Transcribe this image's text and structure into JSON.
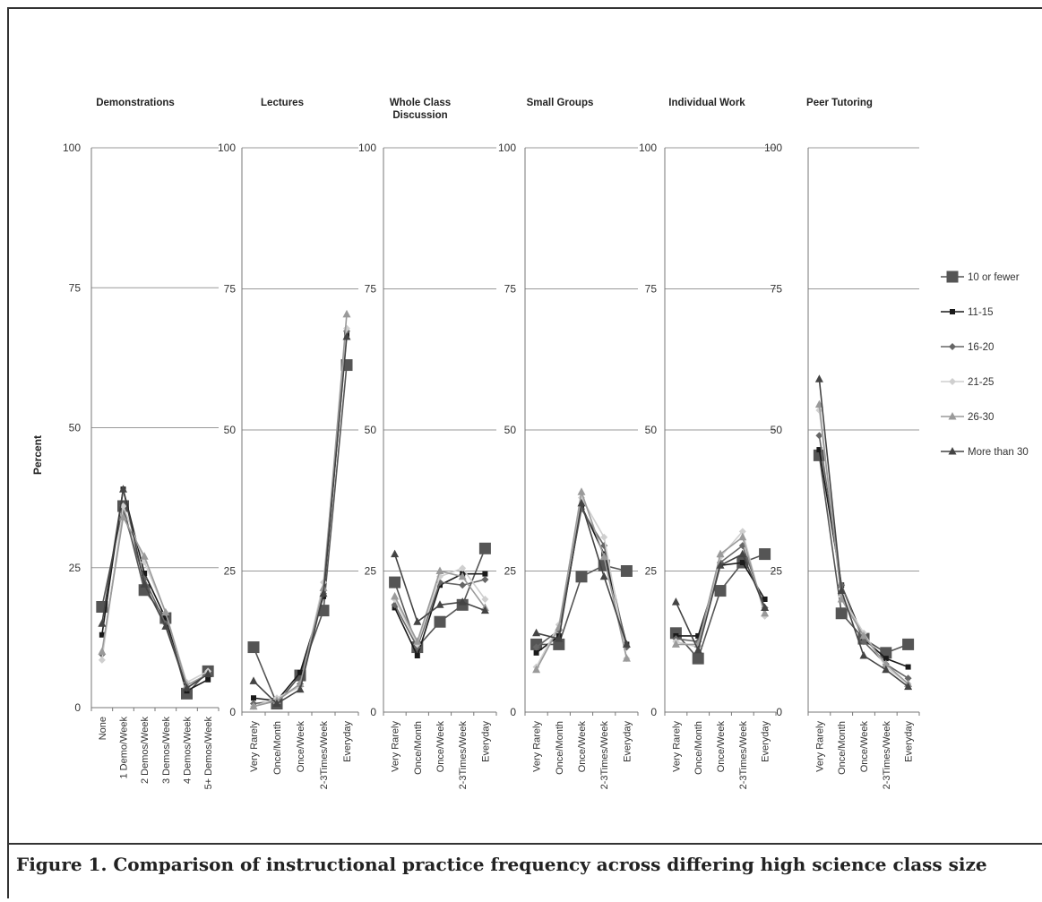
{
  "caption": "Figure 1. Comparison of instructional practice frequency across differing high science class size",
  "chart_data": {
    "type": "line",
    "ylabel": "Percent",
    "ylim": [
      0,
      100
    ],
    "yticks": [
      0,
      25,
      50,
      75,
      100
    ],
    "grid": true,
    "legend": "right",
    "series_styles": [
      {
        "name": "10 or fewer",
        "color": "#555555",
        "marker": "square-large"
      },
      {
        "name": "11-15",
        "color": "#1a1a1a",
        "marker": "square"
      },
      {
        "name": "16-20",
        "color": "#666666",
        "marker": "diamond"
      },
      {
        "name": "21-25",
        "color": "#cfcfcf",
        "marker": "diamond"
      },
      {
        "name": "26-30",
        "color": "#9a9a9a",
        "marker": "triangle"
      },
      {
        "name": "More than 30",
        "color": "#444444",
        "marker": "triangle"
      }
    ],
    "panels": [
      {
        "title": [
          "Demonstrations"
        ],
        "categories": [
          "None",
          "1 Demo/Week",
          "2 Demos/Week",
          "3 Demos/Week",
          "4 Demos/Week",
          "5+ Demos/Week"
        ],
        "series": [
          {
            "name": "10 or fewer",
            "values": [
              18,
              36,
              21,
              16,
              2.5,
              6.5
            ]
          },
          {
            "name": "11-15",
            "values": [
              13,
              39,
              24,
              16,
              3,
              5
            ]
          },
          {
            "name": "16-20",
            "values": [
              9.5,
              35,
              23,
              15,
              3.5,
              6
            ]
          },
          {
            "name": "21-25",
            "values": [
              8.5,
              36,
              26,
              17,
              4.5,
              6.5
            ]
          },
          {
            "name": "26-30",
            "values": [
              10,
              34,
              27,
              17,
              4,
              6
            ]
          },
          {
            "name": "More than 30",
            "values": [
              15,
              39,
              22,
              14.5,
              3.5,
              6
            ]
          }
        ]
      },
      {
        "title": [
          "Lectures"
        ],
        "categories": [
          "Very Rarely",
          "Once/Month",
          "Once/Week",
          "2-3Times/Week",
          "Everyday"
        ],
        "series": [
          {
            "name": "10 or fewer",
            "values": [
              11.5,
              1.5,
              6.5,
              18,
              61.5
            ]
          },
          {
            "name": "11-15",
            "values": [
              2.5,
              2,
              7,
              20.5,
              67
            ]
          },
          {
            "name": "16-20",
            "values": [
              1.5,
              2,
              5,
              21,
              67.5
            ]
          },
          {
            "name": "21-25",
            "values": [
              1,
              2.5,
              4.5,
              23,
              68
            ]
          },
          {
            "name": "26-30",
            "values": [
              1,
              2,
              5,
              22,
              70.5
            ]
          },
          {
            "name": "More than 30",
            "values": [
              5.5,
              1.5,
              4,
              21,
              66.5
            ]
          }
        ]
      },
      {
        "title": [
          "Whole Class",
          "Discussion"
        ],
        "categories": [
          "Very Rarely",
          "Once/Month",
          "Once/Week",
          "2-3Times/Week",
          "Everyday"
        ],
        "series": [
          {
            "name": "10 or fewer",
            "values": [
              23,
              11.5,
              16,
              19,
              29
            ]
          },
          {
            "name": "11-15",
            "values": [
              18.5,
              10,
              22.5,
              24.5,
              24.5
            ]
          },
          {
            "name": "16-20",
            "values": [
              19,
              11.5,
              23,
              22.5,
              23.5
            ]
          },
          {
            "name": "21-25",
            "values": [
              20,
              12,
              24,
              25.5,
              20
            ]
          },
          {
            "name": "26-30",
            "values": [
              20.5,
              12.5,
              25,
              24,
              18.5
            ]
          },
          {
            "name": "More than 30",
            "values": [
              28,
              16,
              19,
              19.5,
              18
            ]
          }
        ]
      },
      {
        "title": [
          "Small Groups"
        ],
        "categories": [
          "Very Rarely",
          "Once/Month",
          "Once/Week",
          "2-3Times/Week",
          "Everyday"
        ],
        "series": [
          {
            "name": "10 or fewer",
            "values": [
              12,
              12,
              24,
              26,
              25
            ]
          },
          {
            "name": "11-15",
            "values": [
              10.5,
              13.5,
              36.5,
              28,
              12
            ]
          },
          {
            "name": "16-20",
            "values": [
              11.5,
              14.5,
              36,
              29.5,
              11.5
            ]
          },
          {
            "name": "21-25",
            "values": [
              8,
              15.5,
              38,
              31,
              9.5
            ]
          },
          {
            "name": "26-30",
            "values": [
              7.5,
              15,
              39,
              27.5,
              9.5
            ]
          },
          {
            "name": "More than 30",
            "values": [
              14,
              13,
              37,
              24,
              12
            ]
          }
        ]
      },
      {
        "title": [
          "Individual Work"
        ],
        "categories": [
          "Very Rarely",
          "Once/Month",
          "Once/Week",
          "2-3Times/Week",
          "Everyday"
        ],
        "series": [
          {
            "name": "10 or fewer",
            "values": [
              14,
              9.5,
              21.5,
              26.5,
              28
            ]
          },
          {
            "name": "11-15",
            "values": [
              13.5,
              13.5,
              26,
              26.5,
              20
            ]
          },
          {
            "name": "16-20",
            "values": [
              13,
              12.5,
              26.5,
              29.5,
              18.5
            ]
          },
          {
            "name": "21-25",
            "values": [
              12.5,
              11.5,
              27.5,
              32,
              17
            ]
          },
          {
            "name": "26-30",
            "values": [
              12,
              12,
              28,
              31,
              17.5
            ]
          },
          {
            "name": "More than 30",
            "values": [
              19.5,
              11,
              26,
              28,
              18.5
            ]
          }
        ]
      },
      {
        "title": [
          "Peer Tutoring"
        ],
        "categories": [
          "Very Rarely",
          "Once/Month",
          "Once/Week",
          "2-3Times/Week",
          "Everyday"
        ],
        "series": [
          {
            "name": "10 or fewer",
            "values": [
              45.5,
              17.5,
              13,
              10.5,
              12
            ]
          },
          {
            "name": "11-15",
            "values": [
              46.5,
              22.5,
              13,
              9.5,
              8
            ]
          },
          {
            "name": "16-20",
            "values": [
              49,
              22.5,
              12.5,
              8.5,
              6
            ]
          },
          {
            "name": "21-25",
            "values": [
              53.5,
              20.5,
              14,
              8,
              5
            ]
          },
          {
            "name": "26-30",
            "values": [
              54.5,
              20,
              13.5,
              8.5,
              5
            ]
          },
          {
            "name": "More than 30",
            "values": [
              59,
              21.5,
              10,
              7.5,
              4.5
            ]
          }
        ]
      }
    ]
  }
}
